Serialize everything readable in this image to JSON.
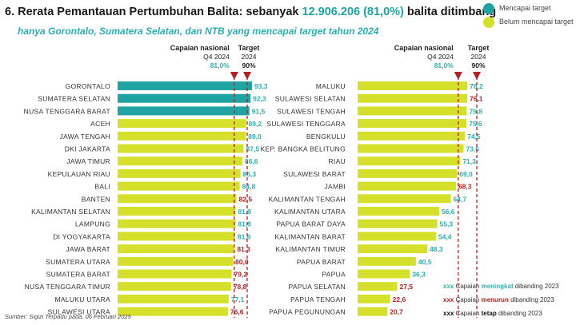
{
  "header": {
    "title_prefix": "6. Rerata Pemantauan Pertumbuhan Balita: sebanyak ",
    "title_highlight": "12.906.206 (81,0%)",
    "title_suffix": " balita ditimbang",
    "subtitle": "hanya Gorontalo, Sumatera Selatan, dan NTB yang mencapai target tahun 2024"
  },
  "legend_top": [
    {
      "label": "Mencapai target",
      "color": "#1fa3a3"
    },
    {
      "label": "Belum mencapai target",
      "color": "#d4e02a"
    }
  ],
  "source": "Sumber: Sigizi Terpadu pada, 06 Februari 2025",
  "change_legend": [
    {
      "marker": "xxx",
      "pre": "Capaian ",
      "key": "meningkat",
      "post": " dibanding 2023",
      "color": "#2bb0b0"
    },
    {
      "marker": "xxx",
      "pre": "Capaian ",
      "key": "menurun",
      "post": " dibanding 2023",
      "color": "#b22222"
    },
    {
      "marker": "xxx",
      "pre": "Capaian ",
      "key": "tetap",
      "post": " dibanding 2023",
      "color": "#111111"
    }
  ],
  "colors": {
    "achieved": "#1fa3a3",
    "not_achieved": "#d4e02a",
    "up": "#2bb0b0",
    "down": "#b22222",
    "national_line": "#b22222",
    "target_line": "#b22222"
  },
  "chart_data": [
    {
      "type": "bar",
      "orientation": "horizontal",
      "reference_lines": {
        "national": {
          "label_line1": "Capaian nasional",
          "label_line2": "Q4 2024",
          "value_label": "81,0%",
          "value": 81.0
        },
        "target": {
          "label_line1": "Target",
          "label_line2": "2024",
          "value_label": "90%",
          "value": 90
        }
      },
      "xlim": [
        0,
        100
      ],
      "categories": [
        "GORONTALO",
        "SUMATERA SELATAN",
        "NUSA TENGGARA BARAT",
        "ACEH",
        "JAWA TENGAH",
        "DKI JAKARTA",
        "JAWA TIMUR",
        "KEPULAUAN RIAU",
        "BALI",
        "BANTEN",
        "KALIMANTAN SELATAN",
        "LAMPUNG",
        "DI YOGYAKARTA",
        "JAWA BARAT",
        "SUMATERA UTARA",
        "SUMATERA BARAT",
        "NUSA TENGGARA TIMUR",
        "MALUKU UTARA",
        "SULAWESI UTARA"
      ],
      "values": [
        93.3,
        92.3,
        91.5,
        89.2,
        89.0,
        87.5,
        86.6,
        85.3,
        84.8,
        82.5,
        81.9,
        81.9,
        81.6,
        81.3,
        80.0,
        79.2,
        78.8,
        77.1,
        76.6
      ],
      "value_labels": [
        "93,3",
        "92,3",
        "91,5",
        "89,2",
        "89,0",
        "87,5",
        "86,6",
        "85,3",
        "84,8",
        "82,5",
        "81,9",
        "81,9",
        "81,6",
        "81,3",
        "80,0",
        "79,2",
        "78,8",
        "77,1",
        "76,6"
      ],
      "change": [
        "up",
        "up",
        "up",
        "up",
        "up",
        "up",
        "up",
        "up",
        "up",
        "down",
        "up",
        "up",
        "up",
        "down",
        "down",
        "down",
        "down",
        "up",
        "down"
      ]
    },
    {
      "type": "bar",
      "orientation": "horizontal",
      "reference_lines": {
        "national": {
          "label_line1": "Capaian nasional",
          "label_line2": "Q4 2024",
          "value_label": "81,0%",
          "value": 81.0
        },
        "target": {
          "label_line1": "Target",
          "label_line2": "2024",
          "value_label": "90%",
          "value": 90
        }
      },
      "xlim": [
        0,
        100
      ],
      "categories": [
        "MALUKU",
        "SULAWESI SELATAN",
        "SULAWESI TENGAH",
        "SULAWESI TENGGARA",
        "BENGKULU",
        "KEP. BANGKA BELITUNG",
        "RIAU",
        "SULAWESI BARAT",
        "JAMBI",
        "KALIMANTAN TENGAH",
        "KALIMANTAN UTARA",
        "PAPUA BARAT DAYA",
        "KALIMANTAN BARAT",
        "KALIMANTAN TIMUR",
        "PAPUA BARAT",
        "PAPUA",
        "PAPUA SELATAN",
        "PAPUA TENGAH",
        "PAPUA PEGUNUNGAN"
      ],
      "values": [
        76.2,
        76.1,
        75.8,
        75.6,
        74.5,
        73.6,
        71.3,
        69.0,
        68.3,
        64.7,
        56.6,
        55.3,
        54.4,
        48.3,
        40.5,
        36.3,
        27.5,
        22.6,
        20.7
      ],
      "value_labels": [
        "76,2",
        "76,1",
        "75,8",
        "75,6",
        "74,5",
        "73,6",
        "71,3",
        "69,0",
        "68,3",
        "64,7",
        "56,6",
        "55,3",
        "54,4",
        "48,3",
        "40,5",
        "36,3",
        "27,5",
        "22,6",
        "20,7"
      ],
      "change": [
        "up",
        "down",
        "up",
        "up",
        "up",
        "up",
        "up",
        "up",
        "down",
        "up",
        "up",
        "up",
        "up",
        "up",
        "up",
        "up",
        "down",
        "down",
        "down"
      ]
    }
  ]
}
